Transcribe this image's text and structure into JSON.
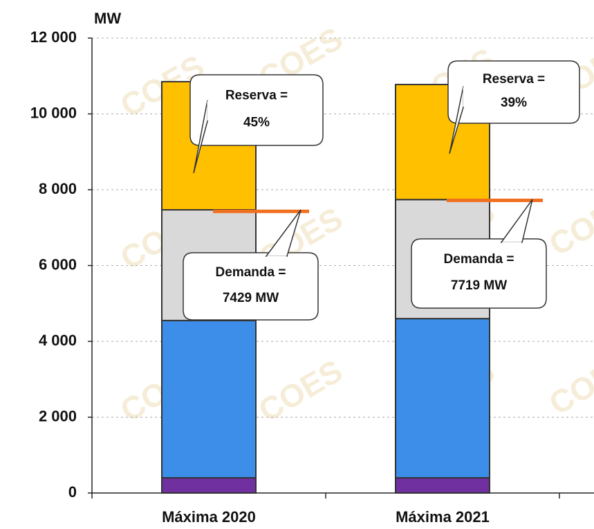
{
  "chart_data": {
    "type": "stacked_bar",
    "y_unit": "MW",
    "watermark": "COES",
    "categories": [
      "Máxima 2020",
      "Máxima 2021"
    ],
    "series": [
      {
        "color": "#7030a0",
        "values": [
          400,
          400
        ]
      },
      {
        "color": "#3d8ee8",
        "values": [
          4150,
          4200
        ]
      },
      {
        "color": "#d9d9d9",
        "values": [
          2920,
          3140
        ]
      },
      {
        "color": "#ffc000",
        "values": [
          3380,
          3035
        ]
      }
    ],
    "demand": {
      "label": "Demanda =",
      "color": "#f07020",
      "values": [
        7429,
        7719
      ],
      "value_labels": [
        "7429 MW",
        "7719 MW"
      ]
    },
    "reserve": {
      "label": "Reserva =",
      "values": [
        45,
        39
      ],
      "value_labels": [
        "45%",
        "39%"
      ]
    },
    "ylim": [
      0,
      12000
    ],
    "yticks": [
      0,
      {
        "value": 2000,
        "label": "2 000"
      },
      {
        "value": 4000,
        "label": "4 000"
      },
      {
        "value": 6000,
        "label": "6 000"
      },
      {
        "value": 8000,
        "label": "8 000"
      },
      {
        "value": 10000,
        "label": "10 000"
      },
      {
        "value": 12000,
        "label": "12 000"
      }
    ],
    "grid": true
  }
}
